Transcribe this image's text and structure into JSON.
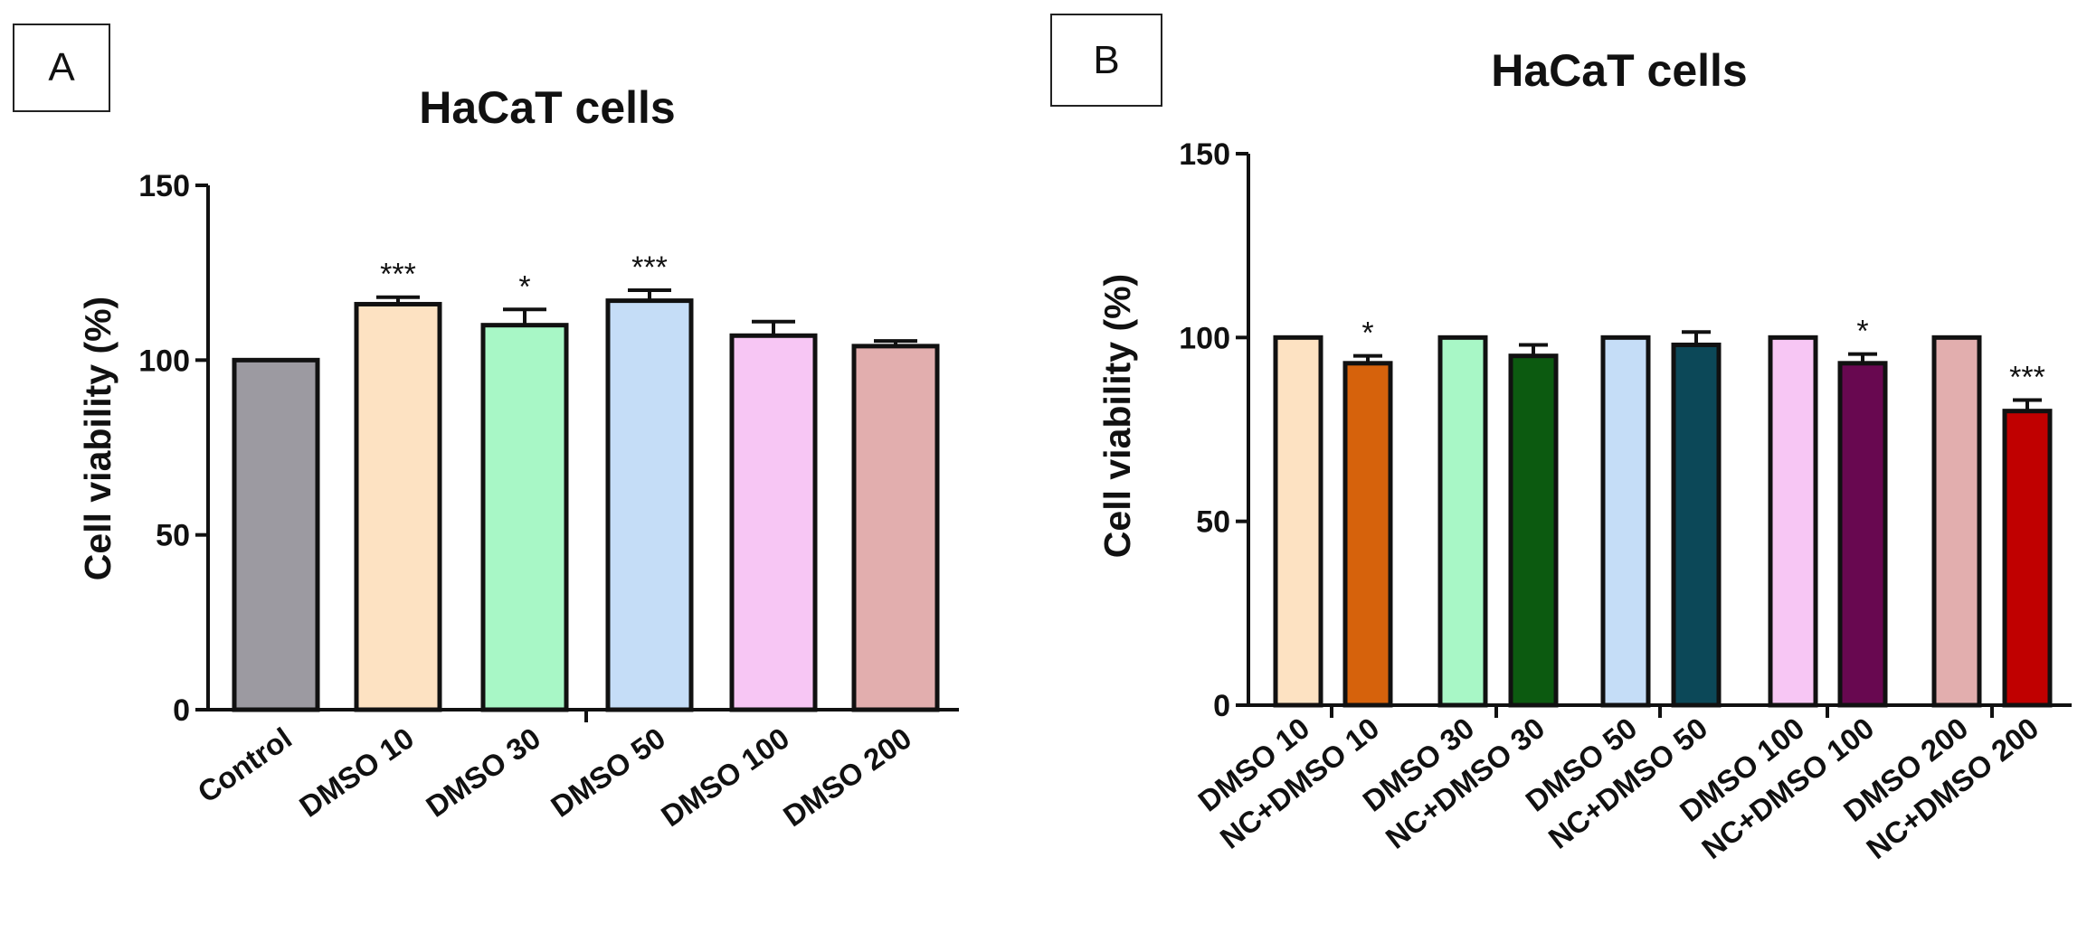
{
  "panels": {
    "a": {
      "letter": "A"
    },
    "b": {
      "letter": "B"
    }
  },
  "chart_data": [
    {
      "id": "a",
      "type": "bar",
      "title": "HaCaT cells",
      "xlabel": "",
      "ylabel": "Cell viability (%)",
      "ylim": [
        0,
        150
      ],
      "yticks": [
        0,
        50,
        100,
        150
      ],
      "categories": [
        "Control",
        "DMSO 10",
        "DMSO 30",
        "DMSO 50",
        "DMSO 100",
        "DMSO 200"
      ],
      "values": [
        100,
        116,
        110,
        117,
        107,
        104
      ],
      "errors": [
        0,
        2,
        4.5,
        3,
        4,
        1.5
      ],
      "significance": [
        "",
        "***",
        "*",
        "***",
        "",
        ""
      ],
      "colors": [
        "#9c9aa1",
        "#fde2c2",
        "#a8f7c6",
        "#c5ddf7",
        "#f7c6f4",
        "#e2aeae"
      ]
    },
    {
      "id": "b",
      "type": "bar",
      "title": "HaCaT cells",
      "xlabel": "",
      "ylabel": "Cell viability (%)",
      "ylim": [
        0,
        150
      ],
      "yticks": [
        0,
        50,
        100,
        150
      ],
      "categories": [
        "DMSO 10",
        "NC+DMSO 10",
        "DMSO 30",
        "NC+DMSO 30",
        "DMSO 50",
        "NC+DMSO 50",
        "DMSO 100",
        "NC+DMSO 100",
        "DMSO 200",
        "NC+DMSO 200"
      ],
      "values": [
        100,
        93,
        100,
        95,
        100,
        98,
        100,
        93,
        100,
        80
      ],
      "errors": [
        0,
        2,
        0,
        3,
        0,
        3.5,
        0,
        2.5,
        0,
        3
      ],
      "significance": [
        "",
        "*",
        "",
        "",
        "",
        "",
        "",
        "*",
        "",
        "***"
      ],
      "colors": [
        "#fde2c2",
        "#d6620c",
        "#a8f7c6",
        "#0c5a10",
        "#c5ddf7",
        "#0c4858",
        "#f7c6f4",
        "#680850",
        "#e2aeae",
        "#c00000"
      ]
    }
  ]
}
